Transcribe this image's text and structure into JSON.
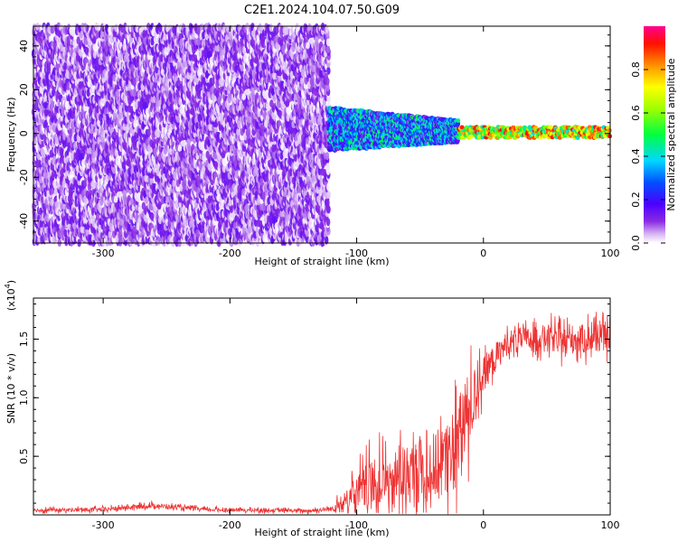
{
  "title": "C2E1.2024.104.07.50.G09",
  "chart_data": [
    {
      "type": "heatmap",
      "title": "C2E1.2024.104.07.50.G09",
      "xlabel": "Height of straight line (km)",
      "ylabel": "Frequency (Hz)",
      "xlim": [
        -355,
        100
      ],
      "ylim": [
        -50,
        49
      ],
      "x_ticks": [
        -300,
        -200,
        -100,
        0,
        100
      ],
      "y_ticks": [
        -40,
        -20,
        0,
        20,
        40
      ],
      "colorbar": {
        "label": "Normalized spectral amplitude",
        "range": [
          0,
          1
        ],
        "ticks": [
          0.0,
          0.2,
          0.4,
          0.6,
          0.8
        ],
        "colormap": "rainbow (white-purple-blue-cyan-green-yellow-orange-red-magenta)"
      },
      "regions": [
        {
          "x_range": [
            -355,
            -122
          ],
          "freq_range": [
            -50,
            49
          ],
          "amplitude_range": [
            0.0,
            0.15
          ],
          "description": "noise"
        },
        {
          "x_range": [
            -122,
            -20
          ],
          "freq_range": [
            -8,
            12
          ],
          "amplitude_range": [
            0.1,
            0.5
          ]
        },
        {
          "x_range": [
            -20,
            100
          ],
          "freq_range": [
            -2,
            3
          ],
          "amplitude_range": [
            0.4,
            0.95
          ]
        }
      ]
    },
    {
      "type": "line",
      "xlabel": "Height of straight line (km)",
      "ylabel": "SNR (10 * v/v)",
      "y_scale_label": "(x10",
      "y_scale_exp": "4",
      "y_scale_suffix": ")",
      "xlim": [
        -355,
        100
      ],
      "ylim": [
        0,
        18500
      ],
      "x_ticks": [
        -300,
        -200,
        -100,
        0,
        100
      ],
      "y_ticks": [
        0.5,
        1.0,
        1.5
      ],
      "y_tick_labels": [
        "0.5",
        "1.0",
        "1.5"
      ],
      "series": [
        {
          "color": "#ee3333",
          "x": [
            -355,
            -300,
            -260,
            -220,
            -180,
            -140,
            -120,
            -110,
            -100,
            -90,
            -80,
            -70,
            -60,
            -50,
            -40,
            -30,
            -25,
            -20,
            -15,
            -10,
            -5,
            0,
            10,
            20,
            30,
            40,
            50,
            60,
            70,
            80,
            90,
            100
          ],
          "mean": [
            400,
            450,
            800,
            450,
            400,
            350,
            500,
            1000,
            1600,
            2500,
            2800,
            3000,
            3500,
            3800,
            4000,
            4500,
            5500,
            6000,
            8000,
            9000,
            11000,
            12000,
            13500,
            14800,
            15000,
            15000,
            15200,
            14800,
            15000,
            15000,
            15200,
            15000
          ],
          "spread": [
            300,
            350,
            400,
            300,
            300,
            300,
            400,
            1800,
            3500,
            4000,
            4500,
            5000,
            5000,
            5500,
            6000,
            6500,
            7000,
            7500,
            8000,
            6000,
            4000,
            3000,
            2500,
            2000,
            2000,
            2000,
            2200,
            2200,
            2500,
            2500,
            2500,
            2000
          ]
        }
      ]
    }
  ]
}
